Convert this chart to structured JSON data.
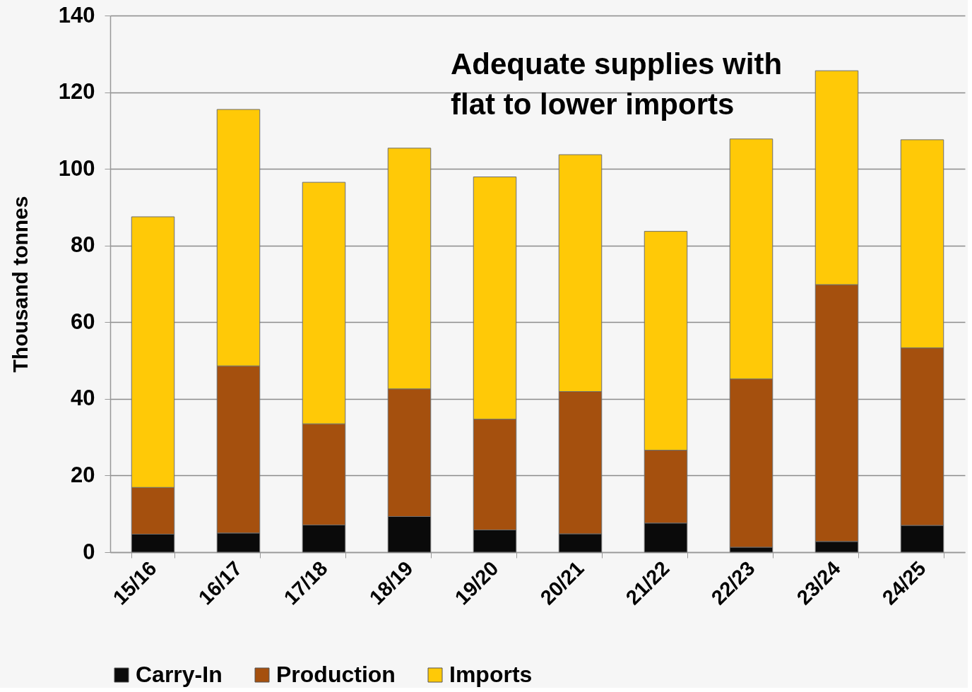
{
  "chart_data": {
    "type": "bar",
    "stacked": true,
    "ylabel": "Thousand tonnes",
    "annotations": [
      "Adequate supplies with\nflat to lower imports"
    ],
    "categories": [
      "15/16",
      "16/17",
      "17/18",
      "18/19",
      "19/20",
      "20/21",
      "21/22",
      "22/23",
      "23/24",
      "24/25"
    ],
    "series": [
      {
        "name": "Carry-In",
        "color": "#0a0a0a",
        "values": [
          4.7,
          5.0,
          7.1,
          9.3,
          5.8,
          4.8,
          7.6,
          1.3,
          2.8,
          7.0
        ]
      },
      {
        "name": "Production",
        "color": "#a5500e",
        "values": [
          12.2,
          43.6,
          26.4,
          33.3,
          28.9,
          37.1,
          19.0,
          43.9,
          67.0,
          46.3
        ]
      },
      {
        "name": "Imports",
        "color": "#ffc907",
        "values": [
          70.6,
          66.9,
          63.0,
          62.8,
          63.2,
          61.8,
          57.1,
          62.6,
          55.8,
          54.3
        ]
      }
    ],
    "ylim": [
      0,
      140
    ],
    "yticks": [
      0,
      20,
      40,
      60,
      80,
      100,
      120,
      140
    ],
    "grid": "y",
    "legend": "bottom"
  }
}
